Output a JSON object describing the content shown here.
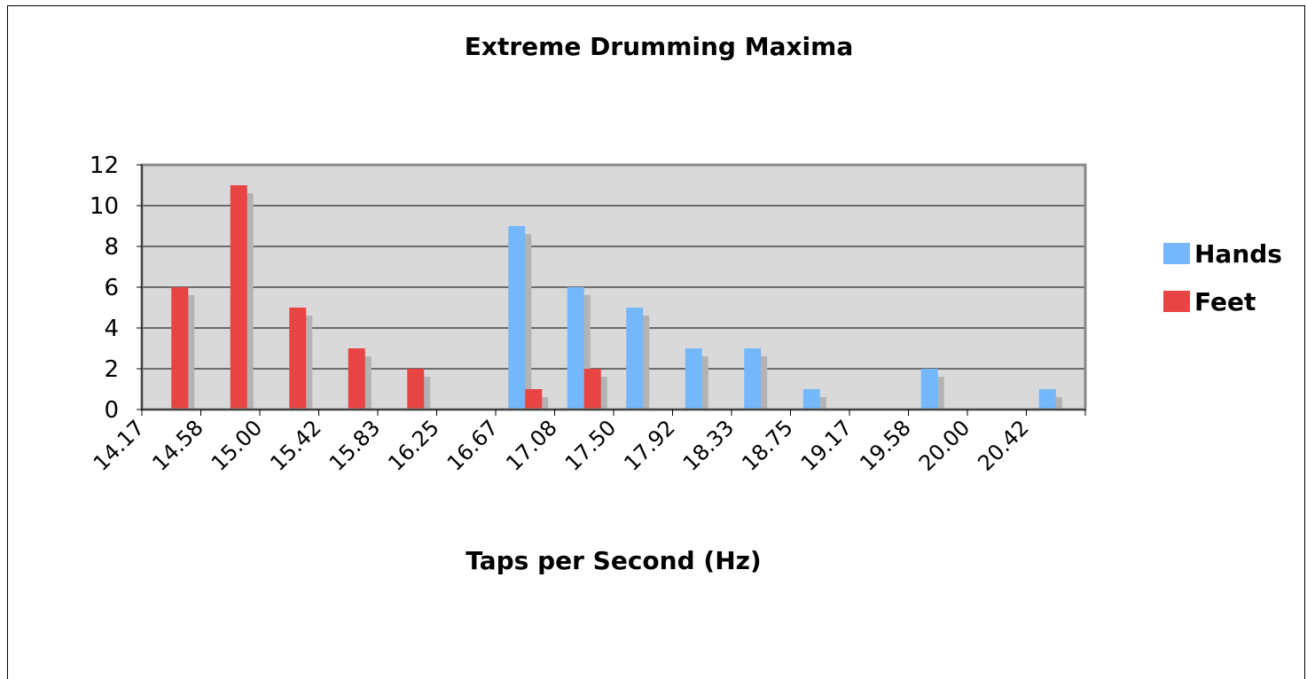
{
  "chart_data": {
    "type": "bar",
    "title": "Extreme Drumming Maxima",
    "xlabel": "Taps per Second (Hz)",
    "ylabel": "",
    "ylim": [
      0,
      12
    ],
    "yticks": [
      0,
      2,
      4,
      6,
      8,
      10,
      12
    ],
    "grid": true,
    "legend_position": "right",
    "categories": [
      "14.17",
      "14.58",
      "15.00",
      "15.42",
      "15.83",
      "16.25",
      "16.67",
      "17.08",
      "17.50",
      "17.92",
      "18.33",
      "18.75",
      "19.17",
      "19.58",
      "20.00",
      "20.42"
    ],
    "series": [
      {
        "name": "Hands",
        "color": "#75b7fb",
        "values": [
          0,
          0,
          0,
          0,
          0,
          0,
          9,
          6,
          5,
          3,
          3,
          1,
          0,
          2,
          0,
          1
        ]
      },
      {
        "name": "Feet",
        "color": "#e84444",
        "values": [
          6,
          11,
          5,
          3,
          2,
          0,
          1,
          2,
          0,
          0,
          0,
          0,
          0,
          0,
          0,
          0
        ]
      }
    ]
  },
  "colors": {
    "plot_background": "#d9d9d9",
    "plot_border": "#888888",
    "gridline": "#000000",
    "shadow": "#b3b3b3"
  }
}
